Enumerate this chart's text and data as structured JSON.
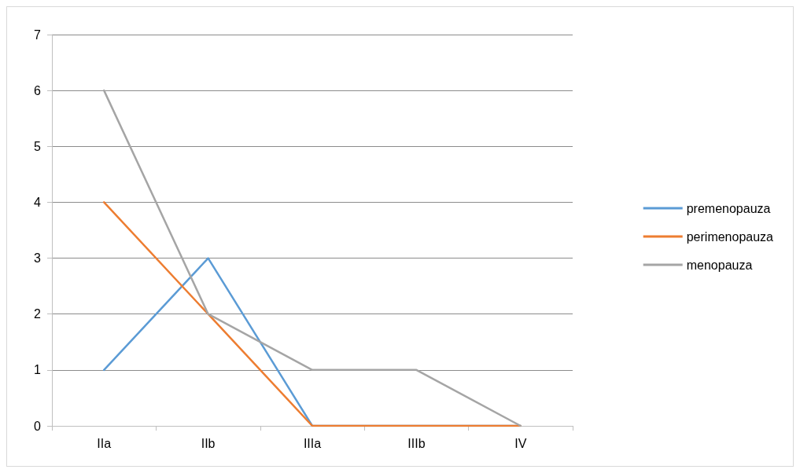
{
  "chart_data": {
    "type": "line",
    "categories": [
      "IIa",
      "IIb",
      "IIIa",
      "IIIb",
      "IV"
    ],
    "series": [
      {
        "name": "premenopauza",
        "color": "#5b9bd5",
        "values": [
          1,
          3,
          0,
          0,
          0
        ]
      },
      {
        "name": "perimenopauza",
        "color": "#ed7d31",
        "values": [
          4,
          2,
          0,
          0,
          0
        ]
      },
      {
        "name": "menopauza",
        "color": "#a5a5a5",
        "values": [
          6,
          2,
          1,
          1,
          0
        ]
      }
    ],
    "ylim": [
      0,
      7
    ],
    "yticks": [
      0,
      1,
      2,
      3,
      4,
      5,
      6,
      7
    ],
    "grid": "y",
    "legend": "right",
    "marker": "none",
    "line_style": "solid"
  }
}
